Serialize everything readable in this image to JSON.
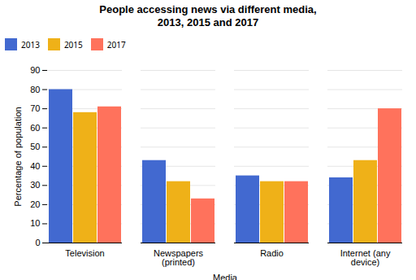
{
  "chart_data": {
    "type": "bar",
    "title": "People accessing news via different media,\n2013, 2015 and 2017",
    "categories": [
      "Television",
      "Newspapers\n(printed)",
      "Radio",
      "Internet (any\ndevice)"
    ],
    "series": [
      {
        "name": "2013",
        "values": [
          80,
          43,
          35,
          34
        ]
      },
      {
        "name": "2015",
        "values": [
          68,
          32,
          32,
          43
        ]
      },
      {
        "name": "2017",
        "values": [
          71,
          23,
          32,
          70
        ]
      }
    ],
    "xlabel": "Media",
    "ylabel": "Percentage of population",
    "ylim": [
      0,
      90
    ],
    "yticks": [
      0,
      10,
      20,
      30,
      40,
      50,
      60,
      70,
      80,
      90
    ],
    "grid": true,
    "legend": "top"
  }
}
